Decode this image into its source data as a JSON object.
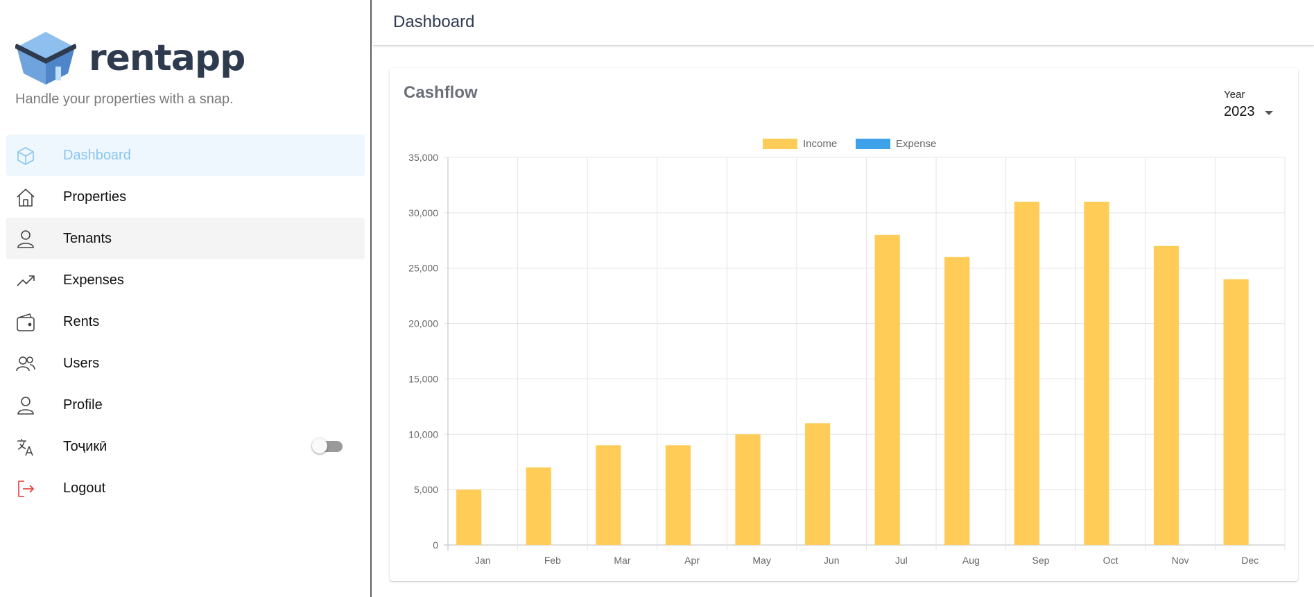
{
  "app": {
    "name": "rentapp",
    "tagline": "Handle your properties with a snap."
  },
  "sidebar": {
    "items": [
      {
        "label": "Dashboard",
        "icon": "cube-icon",
        "active": true
      },
      {
        "label": "Properties",
        "icon": "home-icon"
      },
      {
        "label": "Tenants",
        "icon": "person-icon"
      },
      {
        "label": "Expenses",
        "icon": "trending-up-icon"
      },
      {
        "label": "Rents",
        "icon": "wallet-icon"
      },
      {
        "label": "Users",
        "icon": "users-icon"
      },
      {
        "label": "Profile",
        "icon": "person-icon"
      },
      {
        "label": "Тоҷикӣ",
        "icon": "translate-icon",
        "toggle": false
      },
      {
        "label": "Logout",
        "icon": "logout-icon"
      }
    ]
  },
  "header": {
    "title": "Dashboard"
  },
  "card": {
    "title": "Cashflow",
    "year_label": "Year",
    "year_value": "2023"
  },
  "colors": {
    "income": "#ffcc57",
    "expense": "#3ea2ea",
    "active_nav": "#8ac6ee",
    "logout_icon": "#e53935"
  },
  "chart_data": {
    "type": "bar",
    "categories": [
      "Jan",
      "Feb",
      "Mar",
      "Apr",
      "May",
      "Jun",
      "Jul",
      "Aug",
      "Sep",
      "Oct",
      "Nov",
      "Dec"
    ],
    "series": [
      {
        "name": "Income",
        "color": "#ffcc57",
        "values": [
          5000,
          7000,
          9000,
          9000,
          10000,
          11000,
          28000,
          26000,
          31000,
          31000,
          27000,
          24000
        ]
      },
      {
        "name": "Expense",
        "color": "#3ea2ea",
        "values": [
          0,
          0,
          0,
          0,
          0,
          0,
          0,
          0,
          0,
          0,
          0,
          0
        ]
      }
    ],
    "ylim": [
      0,
      35000
    ],
    "yticks": [
      "0",
      "5,000",
      "10,000",
      "15,000",
      "20,000",
      "25,000",
      "30,000",
      "35,000"
    ],
    "legend": "top-center",
    "grid": true
  }
}
